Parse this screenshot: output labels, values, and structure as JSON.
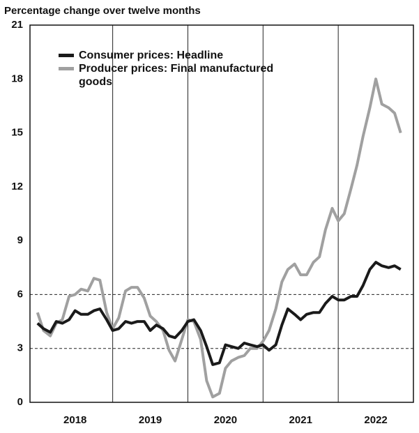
{
  "chart_data": {
    "type": "line",
    "title": "Percentage change over twelve months",
    "x": [
      2018,
      2018.08,
      2018.17,
      2018.25,
      2018.33,
      2018.42,
      2018.5,
      2018.58,
      2018.67,
      2018.75,
      2018.83,
      2018.92,
      2019,
      2019.08,
      2019.17,
      2019.25,
      2019.33,
      2019.42,
      2019.5,
      2019.58,
      2019.67,
      2019.75,
      2019.83,
      2019.92,
      2020,
      2020.08,
      2020.17,
      2020.25,
      2020.33,
      2020.42,
      2020.5,
      2020.58,
      2020.67,
      2020.75,
      2020.83,
      2020.92,
      2021,
      2021.08,
      2021.17,
      2021.25,
      2021.33,
      2021.42,
      2021.5,
      2021.58,
      2021.67,
      2021.75,
      2021.83,
      2021.92,
      2022,
      2022.08,
      2022.17,
      2022.25,
      2022.33,
      2022.42,
      2022.5,
      2022.58,
      2022.67,
      2022.75,
      2022.83
    ],
    "series": [
      {
        "name": "Consumer prices: Headline",
        "color": "#1a1a1a",
        "values": [
          4.4,
          4.1,
          3.9,
          4.5,
          4.4,
          4.6,
          5.1,
          4.9,
          4.9,
          5.1,
          5.2,
          4.6,
          4.0,
          4.1,
          4.5,
          4.4,
          4.5,
          4.5,
          4.0,
          4.3,
          4.1,
          3.7,
          3.6,
          4.0,
          4.5,
          4.6,
          4.0,
          3.1,
          2.1,
          2.2,
          3.2,
          3.1,
          3.0,
          3.3,
          3.2,
          3.1,
          3.2,
          2.9,
          3.2,
          4.3,
          5.2,
          4.9,
          4.6,
          4.9,
          5.0,
          5.0,
          5.5,
          5.9,
          5.7,
          5.7,
          5.9,
          5.9,
          6.5,
          7.4,
          7.8,
          7.6,
          7.5,
          7.6,
          7.4
        ]
      },
      {
        "name": "Producer prices: Final manufactured goods",
        "color": "#a0a0a0",
        "values": [
          5.0,
          4.0,
          3.7,
          4.4,
          4.6,
          5.9,
          6.0,
          6.3,
          6.2,
          6.9,
          6.8,
          5.0,
          4.1,
          4.7,
          6.2,
          6.4,
          6.4,
          5.8,
          4.8,
          4.5,
          4.0,
          2.9,
          2.3,
          3.5,
          4.6,
          4.5,
          3.5,
          1.2,
          0.3,
          0.5,
          1.9,
          2.3,
          2.5,
          2.6,
          3.0,
          3.0,
          3.4,
          4.0,
          5.2,
          6.7,
          7.4,
          7.7,
          7.1,
          7.1,
          7.8,
          8.1,
          9.6,
          10.8,
          10.1,
          10.5,
          11.9,
          13.2,
          14.8,
          16.4,
          18.0,
          16.6,
          16.4,
          16.1,
          15.0
        ]
      }
    ],
    "xlim": [
      2017.9,
      2023.0
    ],
    "xticks": [
      {
        "value": 2018.5,
        "label": "2018"
      },
      {
        "value": 2019.5,
        "label": "2019"
      },
      {
        "value": 2020.5,
        "label": "2020"
      },
      {
        "value": 2021.5,
        "label": "2021"
      },
      {
        "value": 2022.5,
        "label": "2022"
      }
    ],
    "year_dividers": [
      2019,
      2020,
      2021,
      2022
    ],
    "ylim": [
      0,
      21
    ],
    "yticks": [
      0,
      3,
      6,
      9,
      12,
      15,
      18,
      21
    ],
    "reference_lines": [
      3,
      6
    ],
    "legend": "upper left"
  }
}
